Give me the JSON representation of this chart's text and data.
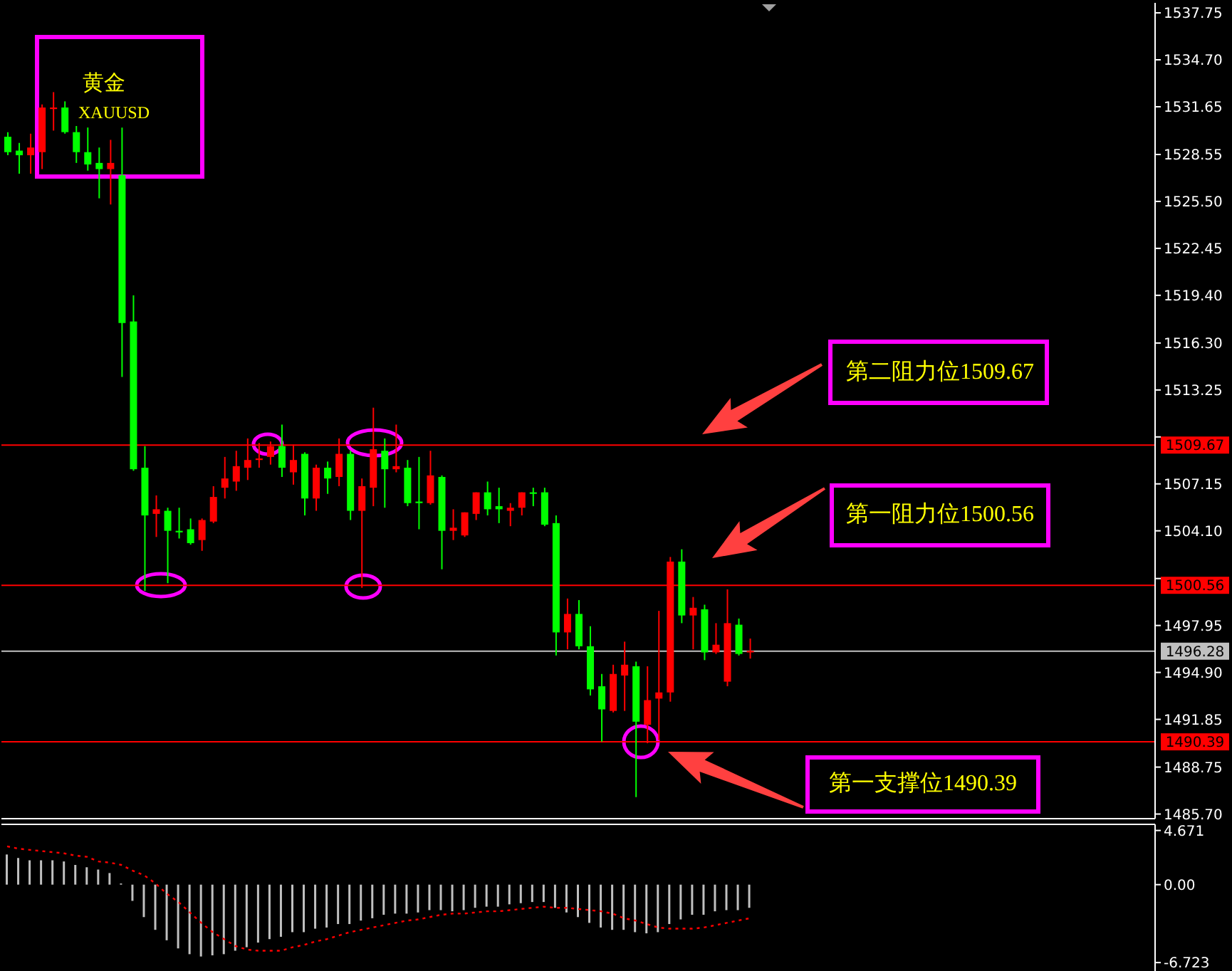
{
  "chart_data": [
    {
      "type": "candlestick",
      "title": "黄金",
      "subtitle": "XAUUSD",
      "categories": [
        null,
        null,
        null,
        null,
        null,
        null,
        null,
        null,
        null,
        null,
        null,
        null,
        null,
        null,
        null,
        null,
        null,
        null,
        null,
        null,
        null,
        null,
        null,
        null,
        null,
        null,
        null,
        null,
        null,
        null,
        null,
        null,
        null,
        null,
        null,
        null,
        null,
        null,
        null,
        null,
        null,
        null,
        null,
        null,
        null,
        null,
        null,
        null,
        null,
        null,
        null,
        null,
        null,
        null,
        null,
        null,
        null,
        null,
        null,
        null,
        null,
        null,
        null,
        null,
        null,
        null,
        null,
        null,
        null,
        null,
        null,
        null,
        null,
        null,
        null,
        null,
        null,
        null,
        null,
        null,
        null,
        null,
        null,
        null,
        null,
        null,
        null,
        null,
        null,
        null,
        null,
        null,
        null,
        null,
        null,
        null,
        null,
        null,
        null,
        null,
        null
      ],
      "ohlc": [
        [
          1529.7,
          1530.0,
          1528.5,
          1528.7
        ],
        [
          1528.8,
          1529.3,
          1527.3,
          1528.5
        ],
        [
          1528.5,
          1529.9,
          1527.3,
          1529.0
        ],
        [
          1528.7,
          1531.8,
          1527.6,
          1531.6
        ],
        [
          1531.5,
          1532.6,
          1530.1,
          1531.6
        ],
        [
          1531.6,
          1532.0,
          1529.9,
          1530.0
        ],
        [
          1530.0,
          1530.4,
          1528.0,
          1528.7
        ],
        [
          1528.7,
          1530.3,
          1527.5,
          1527.9
        ],
        [
          1528.0,
          1529.0,
          1525.7,
          1527.6
        ],
        [
          1527.6,
          1529.5,
          1525.3,
          1528.0
        ],
        [
          1527.2,
          1530.3,
          1514.1,
          1517.6
        ],
        [
          1517.7,
          1519.4,
          1508.0,
          1508.1
        ],
        [
          1508.2,
          1509.6,
          1500.2,
          1505.1
        ],
        [
          1505.2,
          1506.4,
          1503.7,
          1505.5
        ],
        [
          1505.4,
          1505.6,
          1500.7,
          1504.1
        ],
        [
          1504.1,
          1505.6,
          1503.6,
          1504.0
        ],
        [
          1504.2,
          1504.9,
          1503.2,
          1503.3
        ],
        [
          1503.5,
          1504.9,
          1502.8,
          1504.8
        ],
        [
          1504.7,
          1507.0,
          1504.6,
          1506.3
        ],
        [
          1506.9,
          1508.9,
          1506.2,
          1507.5
        ],
        [
          1507.3,
          1509.3,
          1506.7,
          1508.3
        ],
        [
          1508.2,
          1510.1,
          1507.4,
          1508.7
        ],
        [
          1508.7,
          1509.8,
          1508.2,
          1508.8
        ],
        [
          1508.9,
          1509.9,
          1508.4,
          1509.6
        ],
        [
          1509.6,
          1511.0,
          1507.6,
          1508.2
        ],
        [
          1507.9,
          1509.7,
          1507.1,
          1508.7
        ],
        [
          1509.1,
          1509.2,
          1505.1,
          1506.2
        ],
        [
          1506.2,
          1508.4,
          1505.4,
          1508.2
        ],
        [
          1508.2,
          1508.6,
          1506.5,
          1507.5
        ],
        [
          1507.6,
          1510.1,
          1507.0,
          1509.1
        ],
        [
          1509.1,
          1509.3,
          1504.8,
          1505.4
        ],
        [
          1505.4,
          1507.5,
          1500.4,
          1507.0
        ],
        [
          1506.9,
          1512.1,
          1505.7,
          1509.4
        ],
        [
          1509.3,
          1510.1,
          1505.6,
          1508.1
        ],
        [
          1508.1,
          1511.0,
          1507.9,
          1508.3
        ],
        [
          1508.2,
          1508.7,
          1505.7,
          1505.9
        ],
        [
          1506.0,
          1508.9,
          1504.2,
          1505.9
        ],
        [
          1505.9,
          1509.3,
          1505.8,
          1507.7
        ],
        [
          1507.6,
          1507.7,
          1501.6,
          1504.1
        ],
        [
          1504.1,
          1505.5,
          1503.5,
          1504.3
        ],
        [
          1503.8,
          1505.3,
          1503.7,
          1505.3
        ],
        [
          1505.2,
          1506.6,
          1504.8,
          1506.6
        ],
        [
          1506.6,
          1507.3,
          1505.1,
          1505.5
        ],
        [
          1505.7,
          1506.9,
          1504.6,
          1505.5
        ],
        [
          1505.4,
          1505.9,
          1504.4,
          1505.6
        ],
        [
          1505.6,
          1506.6,
          1505.1,
          1506.6
        ],
        [
          1506.6,
          1506.9,
          1505.7,
          1506.5
        ],
        [
          1506.6,
          1506.9,
          1504.4,
          1504.5
        ],
        [
          1504.6,
          1505.1,
          1496.0,
          1497.5
        ],
        [
          1497.5,
          1499.7,
          1496.4,
          1498.7
        ],
        [
          1498.7,
          1499.6,
          1496.4,
          1496.6
        ],
        [
          1496.6,
          1497.9,
          1493.4,
          1493.8
        ],
        [
          1494.0,
          1494.8,
          1490.4,
          1492.5
        ],
        [
          1492.4,
          1495.4,
          1492.3,
          1494.8
        ],
        [
          1494.7,
          1496.9,
          1492.4,
          1495.4
        ],
        [
          1495.3,
          1495.6,
          1486.8,
          1491.7
        ],
        [
          1491.5,
          1495.3,
          1490.3,
          1493.1
        ],
        [
          1493.2,
          1498.9,
          1490.5,
          1493.6
        ],
        [
          1493.6,
          1502.4,
          1493.0,
          1502.1
        ],
        [
          1502.1,
          1502.9,
          1498.1,
          1498.6
        ],
        [
          1498.6,
          1499.8,
          1496.4,
          1499.1
        ],
        [
          1499.0,
          1499.3,
          1495.7,
          1496.2
        ],
        [
          1496.2,
          1498.1,
          1496.1,
          1496.7
        ],
        [
          1494.3,
          1500.3,
          1494.0,
          1498.1
        ],
        [
          1498.0,
          1498.4,
          1496.0,
          1496.1
        ],
        [
          1496.2,
          1497.1,
          1495.8,
          1496.3
        ],
        null,
        null,
        null,
        null,
        null,
        null,
        null,
        null,
        null,
        null,
        null,
        null,
        null,
        null,
        null,
        null,
        null,
        null,
        null,
        null,
        null,
        null,
        null,
        null,
        null,
        null,
        null,
        null,
        null,
        null,
        null,
        null,
        null,
        null,
        null
      ],
      "colors": [
        "#00ff00",
        "#00ff00",
        "#ff0000",
        "#ff0000",
        "#ff0000",
        "#00ff00",
        "#00ff00",
        "#00ff00",
        "#00ff00",
        "#ff0000",
        "#00ff00",
        "#00ff00",
        "#00ff00",
        "#ff0000",
        "#00ff00",
        "#00ff00",
        "#00ff00",
        "#ff0000",
        "#ff0000",
        "#ff0000",
        "#ff0000",
        "#ff0000",
        "#ff0000",
        "#ff0000",
        "#00ff00",
        "#ff0000",
        "#00ff00",
        "#ff0000",
        "#00ff00",
        "#ff0000",
        "#00ff00",
        "#ff0000",
        "#ff0000",
        "#00ff00",
        "#ff0000",
        "#00ff00",
        "#00ff00",
        "#ff0000",
        "#00ff00",
        "#ff0000",
        "#ff0000",
        "#ff0000",
        "#00ff00",
        "#00ff00",
        "#ff0000",
        "#ff0000",
        "#00ff00",
        "#00ff00",
        "#00ff00",
        "#ff0000",
        "#00ff00",
        "#00ff00",
        "#00ff00",
        "#ff0000",
        "#ff0000",
        "#00ff00",
        "#ff0000",
        "#ff0000",
        "#ff0000",
        "#00ff00",
        "#ff0000",
        "#00ff00",
        "#ff0000",
        "#ff0000",
        "#00ff00",
        "#ff0000",
        null,
        null,
        null,
        null,
        null,
        null,
        null,
        null,
        null,
        null,
        null,
        null,
        null,
        null,
        null,
        null,
        null,
        null,
        null,
        null,
        null,
        null,
        null,
        null,
        null,
        null,
        null,
        null,
        null,
        null,
        null,
        null,
        null,
        null,
        null
      ],
      "ylim": [
        1485.4,
        1538.4
      ],
      "yticks": [
        1537.75,
        {
          "value": 1534.7,
          "label": "1534.70"
        },
        1531.65,
        1528.55,
        {
          "value": 1525.5,
          "label": "1525.50"
        },
        1522.45,
        {
          "value": 1519.4,
          "label": "1519.40"
        },
        {
          "value": 1516.3,
          "label": "1516.30"
        },
        1513.25,
        {
          "value": 1510.2,
          "label": null
        },
        1507.15,
        {
          "value": 1504.1,
          "label": "1504.10"
        },
        {
          "value": 1501,
          "label": null
        },
        1497.95,
        {
          "value": 1494.9,
          "label": "1494.90"
        },
        1491.85,
        1488.75,
        {
          "value": 1485.7,
          "label": "1485.70"
        }
      ],
      "ref_lines": [
        {
          "axis": "y",
          "value": 1509.67,
          "label": "1509.67",
          "color": "#ff0000"
        },
        {
          "axis": "y",
          "value": 1500.56,
          "label": "1500.56",
          "color": "#ff0000"
        },
        {
          "axis": "y",
          "value": 1496.28,
          "label": "1496.28",
          "color": "#c0c0c0"
        },
        {
          "axis": "y",
          "value": 1490.39,
          "label": "1490.39",
          "color": "#ff0000"
        }
      ],
      "annotations": [
        "第二阻力位1509.67",
        "第一阻力位1500.56",
        "第一支撑位1490.39"
      ],
      "tick_labels": "y"
    },
    {
      "type": "bar",
      "categories": [
        null,
        null,
        null,
        null,
        null,
        null,
        null,
        null,
        null,
        null,
        null,
        null,
        null,
        null,
        null,
        null,
        null,
        null,
        null,
        null,
        null,
        null,
        null,
        null,
        null,
        null,
        null,
        null,
        null,
        null,
        null,
        null,
        null,
        null,
        null,
        null,
        null,
        null,
        null,
        null,
        null,
        null,
        null,
        null,
        null,
        null,
        null,
        null,
        null,
        null,
        null,
        null,
        null,
        null,
        null,
        null,
        null,
        null,
        null,
        null,
        null,
        null,
        null,
        null,
        null,
        null,
        null,
        null,
        null,
        null,
        null,
        null,
        null,
        null,
        null,
        null,
        null,
        null,
        null,
        null,
        null,
        null,
        null,
        null,
        null,
        null,
        null,
        null,
        null,
        null,
        null,
        null,
        null,
        null,
        null,
        null,
        null,
        null,
        null,
        null,
        null
      ],
      "series": [
        {
          "type": "bar",
          "color": "#c0c0c0",
          "values": [
            2.6,
            2.3,
            2.1,
            2.1,
            2.1,
            2.0,
            1.7,
            1.5,
            1.3,
            1.0,
            0.1,
            -1.4,
            -2.8,
            -3.9,
            -4.8,
            -5.5,
            -6.0,
            -6.2,
            -6.1,
            -6.0,
            -5.7,
            -5.4,
            -5.0,
            -4.7,
            -4.5,
            -4.1,
            -4.1,
            -3.8,
            -3.7,
            -3.4,
            -3.4,
            -3.1,
            -2.9,
            -2.6,
            -2.5,
            -2.5,
            -2.4,
            -2.2,
            -2.2,
            -2.3,
            -2.2,
            -2.0,
            -1.9,
            -1.9,
            -1.7,
            -1.6,
            -1.5,
            -1.5,
            -2.0,
            -2.4,
            -2.8,
            -3.3,
            -3.7,
            -3.9,
            -3.9,
            -4.1,
            -4.2,
            -4.1,
            -3.4,
            -3.0,
            -2.6,
            -2.6,
            -2.3,
            -2.2,
            -2.2,
            -2.0,
            null,
            null,
            null,
            null,
            null,
            null,
            null,
            null,
            null,
            null,
            null,
            null,
            null,
            null,
            null,
            null,
            null,
            null,
            null,
            null,
            null,
            null,
            null,
            null,
            null,
            null,
            null,
            null,
            null,
            null,
            null,
            null,
            null,
            null,
            null
          ]
        },
        {
          "type": "line",
          "color": "#ff0000",
          "line_style": "dotted",
          "values": [
            3.3,
            3.1,
            3.0,
            2.9,
            2.8,
            2.7,
            2.5,
            2.4,
            2.0,
            1.9,
            1.7,
            1.2,
            0.8,
            0.1,
            -0.8,
            -1.5,
            -2.4,
            -3.3,
            -4.1,
            -4.7,
            -5.3,
            -5.6,
            -5.7,
            -5.7,
            -5.7,
            -5.4,
            -5.2,
            -4.9,
            -4.7,
            -4.4,
            -4.1,
            -3.9,
            -3.7,
            -3.5,
            -3.3,
            -3.1,
            -3.0,
            -2.8,
            -2.6,
            -2.5,
            -2.5,
            -2.4,
            -2.3,
            -2.3,
            -2.2,
            -2.1,
            -2.0,
            -1.9,
            -2.0,
            -2.0,
            -2.1,
            -2.2,
            -2.3,
            -2.5,
            -2.9,
            -3.1,
            -3.4,
            -3.7,
            -3.8,
            -3.8,
            -3.8,
            -3.7,
            -3.5,
            -3.3,
            -3.1,
            -2.9,
            null,
            null,
            null,
            null,
            null,
            null,
            null,
            null,
            null,
            null,
            null,
            null,
            null,
            null,
            null,
            null,
            null,
            null,
            null,
            null,
            null,
            null,
            null,
            null,
            null,
            null,
            null,
            null,
            null,
            null,
            null,
            null,
            null,
            null,
            null
          ]
        }
      ],
      "ylim": [
        -7.45,
        5.2
      ],
      "yticks": [
        4.671,
        {
          "value": 0,
          "label": "0.00"
        },
        -6.723
      ],
      "tick_labels": "y",
      "marker": "none"
    }
  ]
}
